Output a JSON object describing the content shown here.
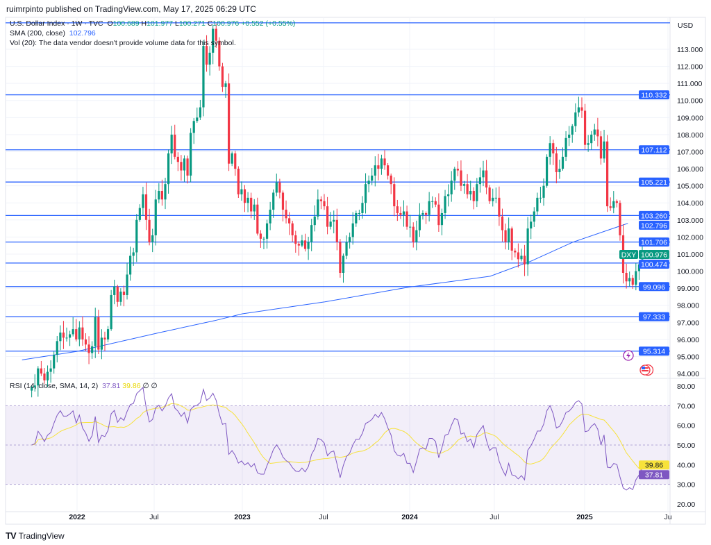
{
  "publisher": "ruimrpinto published on TradingView.com, May 17, 2025 06:29 UTC",
  "symbol": {
    "title": "U.S. Dollar Index · 1W · TVC",
    "ticker": "DXY",
    "open_label": "O",
    "open": "100.689",
    "high_label": "H",
    "high": "101.977",
    "low_label": "L",
    "low": "100.271",
    "close_label": "C",
    "close": "100.976",
    "change": "+0.552 (+0.55%)"
  },
  "sma": {
    "label": "SMA (200, close)",
    "value": "102.796"
  },
  "vol": {
    "label": "Vol (20): The data vendor doesn't provide volume data for this symbol."
  },
  "rsi": {
    "label": "RSI (14, close, SMA, 14, 2)",
    "value": "37.81",
    "sma_value": "39.86",
    "hidden1": "∅",
    "hidden2": "∅"
  },
  "currency": "USD",
  "logo": "TradingView",
  "colors": {
    "up": "#089981",
    "down": "#f23645",
    "level": "#2962ff",
    "sma": "#2962ff",
    "rsi": "#7e57c2",
    "rsi_ma": "#f7e23b",
    "rsi_band": "#7e57c2"
  },
  "chart_data": {
    "type": "candlestick",
    "interval": "1W",
    "price_axis": {
      "ticks": [
        "113.000",
        "112.000",
        "111.000",
        "110.000",
        "109.000",
        "108.000",
        "107.000",
        "106.000",
        "105.000",
        "104.000",
        "103.000",
        "102.000",
        "101.000",
        "100.000",
        "99.000",
        "98.000",
        "97.000",
        "96.000",
        "95.000",
        "94.000"
      ],
      "range": [
        93.5,
        115
      ]
    },
    "time_axis": {
      "ticks": [
        "2022",
        "Jul",
        "2023",
        "Jul",
        "2024",
        "Jul",
        "2025",
        "Ju"
      ]
    },
    "levels": [
      114.55,
      110.332,
      107.112,
      105.221,
      103.26,
      101.706,
      100.474,
      99.096,
      97.333,
      95.314
    ],
    "level_labels": [
      "",
      "110.332",
      "107.112",
      "105.221",
      "103.260",
      "101.706",
      "100.474",
      "99.096",
      "97.333",
      "95.314"
    ],
    "weekly_closes": [
      93.2,
      93.3,
      94.3,
      94.0,
      93.6,
      94.1,
      94.3,
      95.1,
      95.9,
      96.4,
      96.1,
      96.1,
      96.3,
      96.6,
      96.0,
      96.7,
      96.0,
      95.7,
      95.2,
      95.6,
      97.3,
      95.4,
      96.1,
      96.0,
      96.6,
      98.6,
      99.1,
      98.2,
      98.8,
      98.6,
      99.8,
      100.9,
      101.1,
      103.0,
      103.7,
      104.5,
      103.0,
      101.7,
      102.1,
      104.2,
      104.7,
      104.2,
      105.1,
      106.9,
      108.0,
      106.7,
      106.4,
      105.9,
      106.6,
      105.6,
      108.1,
      108.8,
      109.0,
      109.6,
      113.2,
      112.1,
      112.8,
      114.2,
      113.5,
      112.0,
      110.8,
      111.0,
      106.3,
      106.9,
      106.0,
      104.5,
      104.8,
      104.0,
      104.3,
      103.5,
      103.9,
      102.2,
      101.9,
      101.9,
      102.8,
      103.6,
      104.6,
      105.2,
      104.6,
      103.6,
      103.1,
      102.8,
      102.1,
      101.6,
      101.5,
      101.8,
      101.3,
      101.7,
      102.7,
      103.2,
      104.2,
      104.1,
      103.8,
      102.6,
      102.9,
      103.0,
      101.7,
      99.9,
      100.9,
      101.7,
      102.0,
      102.8,
      103.4,
      103.4,
      104.0,
      105.1,
      105.3,
      105.6,
      106.2,
      106.0,
      106.6,
      106.2,
      105.6,
      105.1,
      103.8,
      103.4,
      103.3,
      103.5,
      102.6,
      102.6,
      101.7,
      102.4,
      103.3,
      103.4,
      103.3,
      104.1,
      104.1,
      103.9,
      102.7,
      103.4,
      104.4,
      104.5,
      105.3,
      106.0,
      105.9,
      105.0,
      105.1,
      104.5,
      104.7,
      104.1,
      105.1,
      105.5,
      105.9,
      104.9,
      104.1,
      104.3,
      104.3,
      103.2,
      102.4,
      101.7,
      102.5,
      101.2,
      101.1,
      100.7,
      100.9,
      100.4,
      102.5,
      102.9,
      103.5,
      104.3,
      104.3,
      105.0,
      106.7,
      107.5,
      106.9,
      105.8,
      106.0,
      106.7,
      107.8,
      108.0,
      108.5,
      109.3,
      109.6,
      109.4,
      107.4,
      107.5,
      108.0,
      108.3,
      107.9,
      106.6,
      107.6,
      103.8,
      103.7,
      104.1,
      104.0,
      102.1,
      99.9,
      99.4,
      99.6,
      99.2,
      100.0,
      100.4,
      100.976
    ],
    "sma_200": [
      [
        "2021-09",
        94.8
      ],
      [
        "2022-01",
        95.3
      ],
      [
        "2022-07",
        96.4
      ],
      [
        "2022-11",
        97.1
      ],
      [
        "2023-01",
        97.5
      ],
      [
        "2023-07",
        98.2
      ],
      [
        "2024-01",
        99.05
      ],
      [
        "2024-07",
        99.7
      ],
      [
        "2024-10",
        100.6
      ],
      [
        "2025-01",
        101.7
      ],
      [
        "2025-05",
        102.8
      ]
    ],
    "rsi_axis": {
      "ticks": [
        "80.00",
        "70.00",
        "60.00",
        "50.00",
        "40.00",
        "30.00",
        "20.00"
      ],
      "band": [
        30,
        70
      ]
    }
  }
}
